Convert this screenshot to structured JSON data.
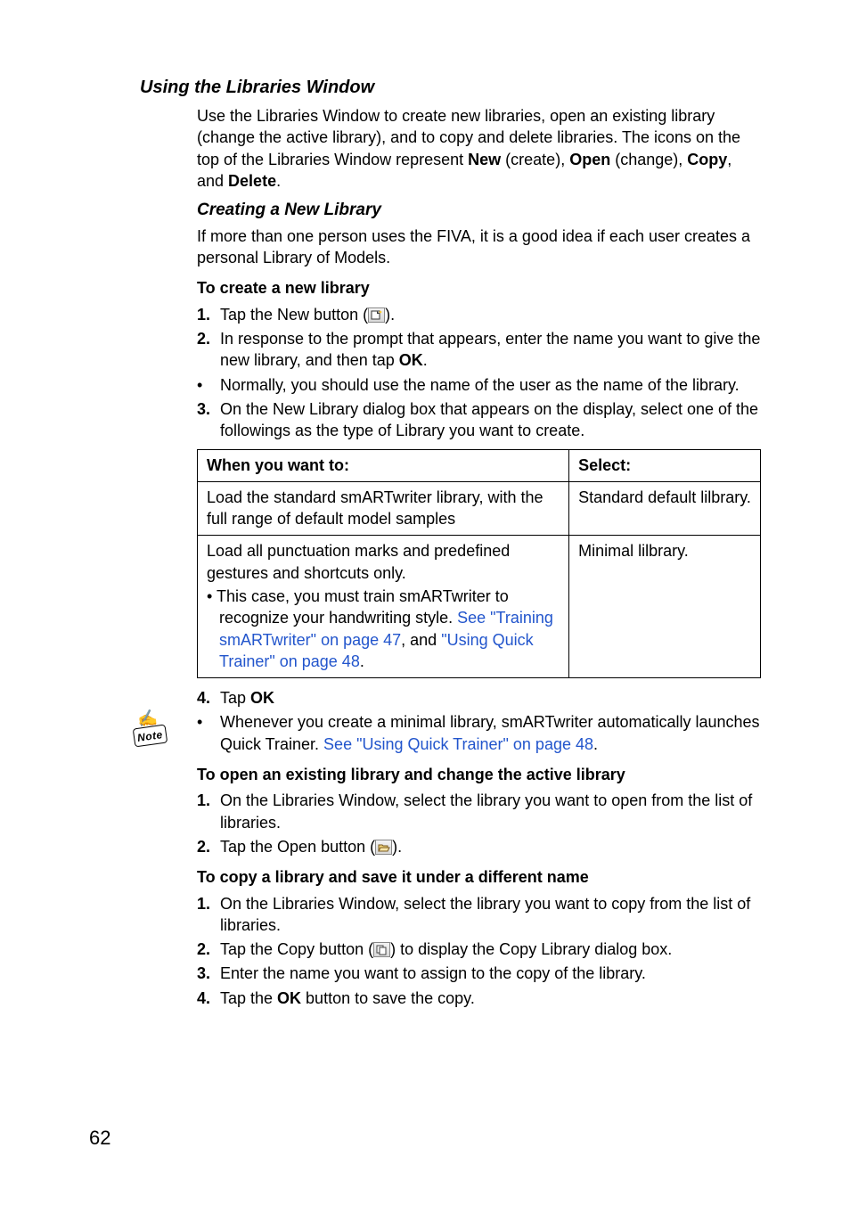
{
  "headings": {
    "h1": "Using the Libraries Window",
    "h2": "Creating a New Library",
    "h3a": "To create a new library",
    "h3b": "To open an existing library and change the active library",
    "h3c": "To copy a library and save it under a different name"
  },
  "intro": {
    "p1a": "Use the Libraries Window to create new libraries, open an existing library (change the active library), and to copy and delete libraries. The icons on the top of the Libraries Window represent ",
    "new": "New",
    "p1b": " (create), ",
    "open": "Open",
    "p1c": " (change), ",
    "copy": "Copy",
    "p1d": ", and ",
    "delete": "Delete",
    "p1e": "."
  },
  "create_intro": "If more than one person uses the FIVA, it is a good idea if each user creates a personal Library of Models.",
  "steps_a": {
    "m1": "1.",
    "s1a": "Tap the New button (",
    "s1b": ").",
    "m2": "2.",
    "s2a": "In response to the prompt that appears, enter the name you want to give the new library, and then tap ",
    "ok": "OK",
    "s2b": ".",
    "mb": "•",
    "sb": "Normally, you should use the name of the user as the name of the library.",
    "m3": "3.",
    "s3": "On the New Library dialog box that appears on the display, select one of the followings as the type of Library you want to create."
  },
  "table": {
    "th1": "When you want to:",
    "th2": "Select:",
    "r1c1": "Load the standard smARTwriter library, with the full range of default model samples",
    "r1c2": "Standard default lilbrary.",
    "r2c1a": "Load all punctuation marks and predefined gestures and shortcuts only.",
    "r2c1b_pre": "• This case, you must train smARTwriter to recognize your handwriting style. ",
    "r2c1b_link1": "See \"Training smARTwriter\" on page 47",
    "r2c1b_mid": ", and ",
    "r2c1b_link2": "\"Using Quick Trainer\" on page 48",
    "r2c1b_post": ".",
    "r2c2": "Minimal lilbrary."
  },
  "steps_a2": {
    "m4": "4.",
    "s4a": "Tap ",
    "ok": "OK",
    "mb": "•",
    "sba": "Whenever you create a minimal library, smARTwriter automatically launches Quick Trainer. ",
    "sblink": "See \"Using Quick Trainer\" on page 48",
    "sbb": "."
  },
  "steps_b": {
    "m1": "1.",
    "s1": "On the Libraries Window, select the library you want to open from the list of libraries.",
    "m2": "2.",
    "s2a": "Tap the Open button (",
    "s2b": ")."
  },
  "steps_c": {
    "m1": "1.",
    "s1": "On the Libraries Window, select the library you want to copy from the list of libraries.",
    "m2": "2.",
    "s2a": "Tap the Copy button (",
    "s2b": ") to display the Copy Library dialog box.",
    "m3": "3.",
    "s3": "Enter the name you want to assign to the copy of the library.",
    "m4": "4.",
    "s4a": "Tap the ",
    "ok": "OK",
    "s4b": " button to save the copy."
  },
  "note_label": "Note",
  "page_number": "62",
  "colors": {
    "link": "#2255cc"
  }
}
